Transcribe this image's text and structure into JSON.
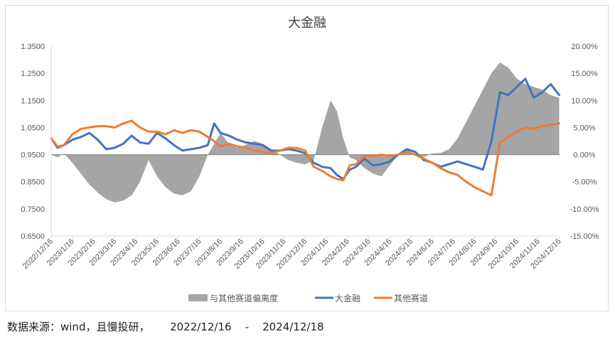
{
  "chart_data": {
    "type": "line",
    "title": "大金融",
    "y_left_ticks": [
      "1.3500",
      "1.2500",
      "1.1500",
      "1.0500",
      "0.9500",
      "0.8500",
      "0.7500",
      "0.6500"
    ],
    "y_left_range": [
      0.65,
      1.35
    ],
    "y_right_ticks": [
      "20.00%",
      "15.00%",
      "10.00%",
      "5.00%",
      "0.00%",
      "-5.00%",
      "-10.00%",
      "-15.00%"
    ],
    "y_right_range": [
      -0.15,
      0.2
    ],
    "x_ticks": [
      "2022/12/16",
      "2023/1/16",
      "2023/2/16",
      "2023/3/16",
      "2023/4/16",
      "2023/5/16",
      "2023/6/16",
      "2023/7/16",
      "2023/8/16",
      "2023/9/16",
      "2023/10/16",
      "2023/11/16",
      "2023/12/16",
      "2024/1/16",
      "2024/2/16",
      "2024/3/16",
      "2024/4/16",
      "2024/5/16",
      "2024/6/16",
      "2024/7/16",
      "2024/8/16",
      "2024/9/16",
      "2024/10/16",
      "2024/11/16",
      "2024/12/16"
    ],
    "x_range": [
      0,
      24.05
    ],
    "legend_position": "bottom",
    "grid": false,
    "series": [
      {
        "name": "与其他赛道偏离度",
        "type": "area",
        "axis": "right",
        "color": "#a5a5a5",
        "x": [
          0,
          0.3,
          0.6,
          1,
          1.4,
          1.8,
          2.2,
          2.6,
          3,
          3.4,
          3.8,
          4.2,
          4.6,
          5,
          5.4,
          5.8,
          6.2,
          6.6,
          7,
          7.4,
          7.7,
          8,
          8.4,
          8.8,
          9.2,
          9.6,
          10,
          10.4,
          10.8,
          11.2,
          11.6,
          12,
          12.4,
          12.8,
          13.2,
          13.5,
          13.8,
          14.1,
          14.4,
          14.8,
          15.2,
          15.6,
          16,
          16.4,
          16.8,
          17.2,
          17.6,
          18,
          18.4,
          18.8,
          19.2,
          19.6,
          20,
          20.4,
          20.8,
          21.2,
          21.6,
          22,
          22.4,
          22.8,
          23.2,
          23.6,
          24
        ],
        "values": [
          0.0,
          -0.005,
          0.002,
          -0.015,
          -0.035,
          -0.055,
          -0.07,
          -0.082,
          -0.088,
          -0.085,
          -0.075,
          -0.05,
          -0.01,
          -0.04,
          -0.06,
          -0.072,
          -0.075,
          -0.068,
          -0.04,
          0.0,
          0.02,
          0.04,
          0.02,
          0.012,
          0.018,
          0.025,
          0.02,
          0.01,
          0.0,
          -0.01,
          -0.015,
          -0.018,
          -0.01,
          0.05,
          0.1,
          0.08,
          0.03,
          -0.005,
          -0.01,
          -0.025,
          -0.035,
          -0.04,
          -0.02,
          0.0,
          0.01,
          0.0,
          -0.005,
          0.002,
          0.003,
          0.01,
          0.03,
          0.06,
          0.09,
          0.12,
          0.15,
          0.17,
          0.16,
          0.14,
          0.13,
          0.125,
          0.12,
          0.11,
          0.105
        ]
      },
      {
        "name": "大金融",
        "type": "line",
        "axis": "left",
        "color": "#4472c4",
        "x": [
          0,
          0.3,
          0.6,
          1,
          1.4,
          1.8,
          2.2,
          2.6,
          3,
          3.4,
          3.8,
          4.2,
          4.6,
          5,
          5.4,
          5.8,
          6.2,
          6.6,
          7,
          7.4,
          7.7,
          8,
          8.4,
          8.8,
          9.2,
          9.6,
          10,
          10.4,
          10.8,
          11.2,
          11.6,
          12,
          12.4,
          12.8,
          13.2,
          13.5,
          13.8,
          14.1,
          14.4,
          14.8,
          15.2,
          15.6,
          16,
          16.4,
          16.8,
          17.2,
          17.6,
          18,
          18.4,
          18.8,
          19.2,
          19.6,
          20,
          20.4,
          20.8,
          21.2,
          21.6,
          22,
          22.4,
          22.8,
          23.2,
          23.6,
          24
        ],
        "values": [
          1.01,
          0.975,
          0.985,
          1.005,
          1.015,
          1.03,
          1.005,
          0.97,
          0.975,
          0.99,
          1.02,
          0.995,
          0.99,
          1.03,
          1.01,
          0.985,
          0.965,
          0.97,
          0.975,
          0.985,
          1.065,
          1.03,
          1.02,
          1.005,
          0.995,
          0.99,
          0.985,
          0.965,
          0.965,
          0.97,
          0.965,
          0.955,
          0.92,
          0.905,
          0.9,
          0.875,
          0.86,
          0.895,
          0.905,
          0.935,
          0.91,
          0.915,
          0.925,
          0.95,
          0.97,
          0.96,
          0.93,
          0.92,
          0.905,
          0.915,
          0.925,
          0.915,
          0.905,
          0.895,
          1.0,
          1.18,
          1.17,
          1.2,
          1.23,
          1.16,
          1.18,
          1.21,
          1.17
        ]
      },
      {
        "name": "其他赛道",
        "type": "line",
        "axis": "left",
        "color": "#ed7d31",
        "x": [
          0,
          0.3,
          0.6,
          1,
          1.4,
          1.8,
          2.2,
          2.6,
          3,
          3.4,
          3.8,
          4.2,
          4.6,
          5,
          5.4,
          5.8,
          6.2,
          6.6,
          7,
          7.4,
          7.7,
          8,
          8.4,
          8.8,
          9.2,
          9.6,
          10,
          10.4,
          10.8,
          11.2,
          11.6,
          12,
          12.4,
          12.8,
          13.2,
          13.5,
          13.8,
          14.1,
          14.4,
          14.8,
          15.2,
          15.6,
          16,
          16.4,
          16.8,
          17.2,
          17.6,
          18,
          18.4,
          18.8,
          19.2,
          19.6,
          20,
          20.4,
          20.8,
          21.2,
          21.6,
          22,
          22.4,
          22.8,
          23.2,
          23.6,
          24
        ],
        "values": [
          1.01,
          0.98,
          0.985,
          1.025,
          1.045,
          1.05,
          1.055,
          1.055,
          1.05,
          1.065,
          1.075,
          1.05,
          1.035,
          1.035,
          1.025,
          1.04,
          1.03,
          1.04,
          1.035,
          1.015,
          1.0,
          0.98,
          0.99,
          0.98,
          0.975,
          0.965,
          0.96,
          0.955,
          0.965,
          0.975,
          0.975,
          0.965,
          0.905,
          0.89,
          0.87,
          0.86,
          0.855,
          0.91,
          0.915,
          0.945,
          0.945,
          0.95,
          0.945,
          0.95,
          0.96,
          0.95,
          0.935,
          0.92,
          0.9,
          0.885,
          0.875,
          0.85,
          0.83,
          0.815,
          0.8,
          0.995,
          1.015,
          1.035,
          1.05,
          1.045,
          1.055,
          1.06,
          1.065
        ]
      }
    ]
  },
  "source_note": "数据来源：wind，且慢投研，      2022/12/16    -    2024/12/18"
}
